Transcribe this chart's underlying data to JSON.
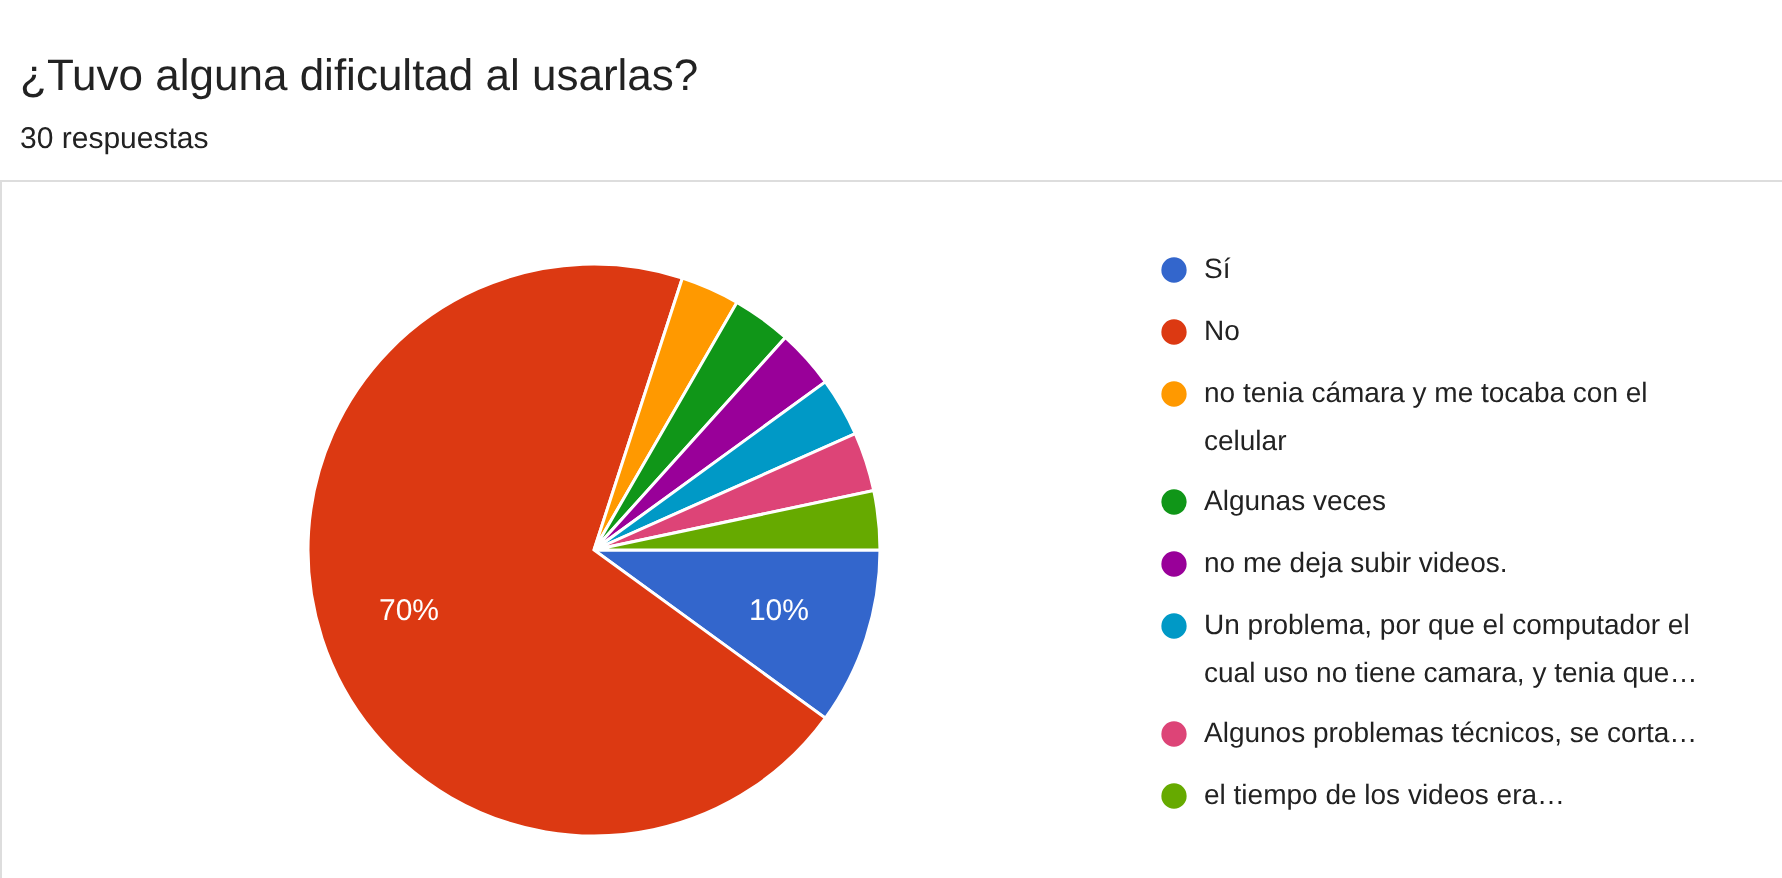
{
  "chart_data": {
    "type": "pie",
    "title": "¿Tuvo alguna dificultad al usarlas?",
    "subtitle": "30 respuestas",
    "categories": [
      "Sí",
      "No",
      "no tenia cámara y me tocaba con el celular",
      "Algunas veces",
      "no me deja subir videos.",
      "Un problema, por que el computador el cual uso no tiene camara, y tenia que…",
      "Algunos problemas técnicos, se corta…",
      "el tiempo de los videos era…"
    ],
    "values": [
      10,
      70,
      3.333,
      3.333,
      3.333,
      3.333,
      3.333,
      3.333
    ],
    "colors": [
      "#3366cc",
      "#dc3912",
      "#ff9900",
      "#109618",
      "#990099",
      "#0099c6",
      "#dd4477",
      "#66aa00"
    ],
    "value_labels": [
      "10%",
      "70%",
      null,
      null,
      null,
      null,
      null,
      null
    ],
    "legend": "right"
  }
}
